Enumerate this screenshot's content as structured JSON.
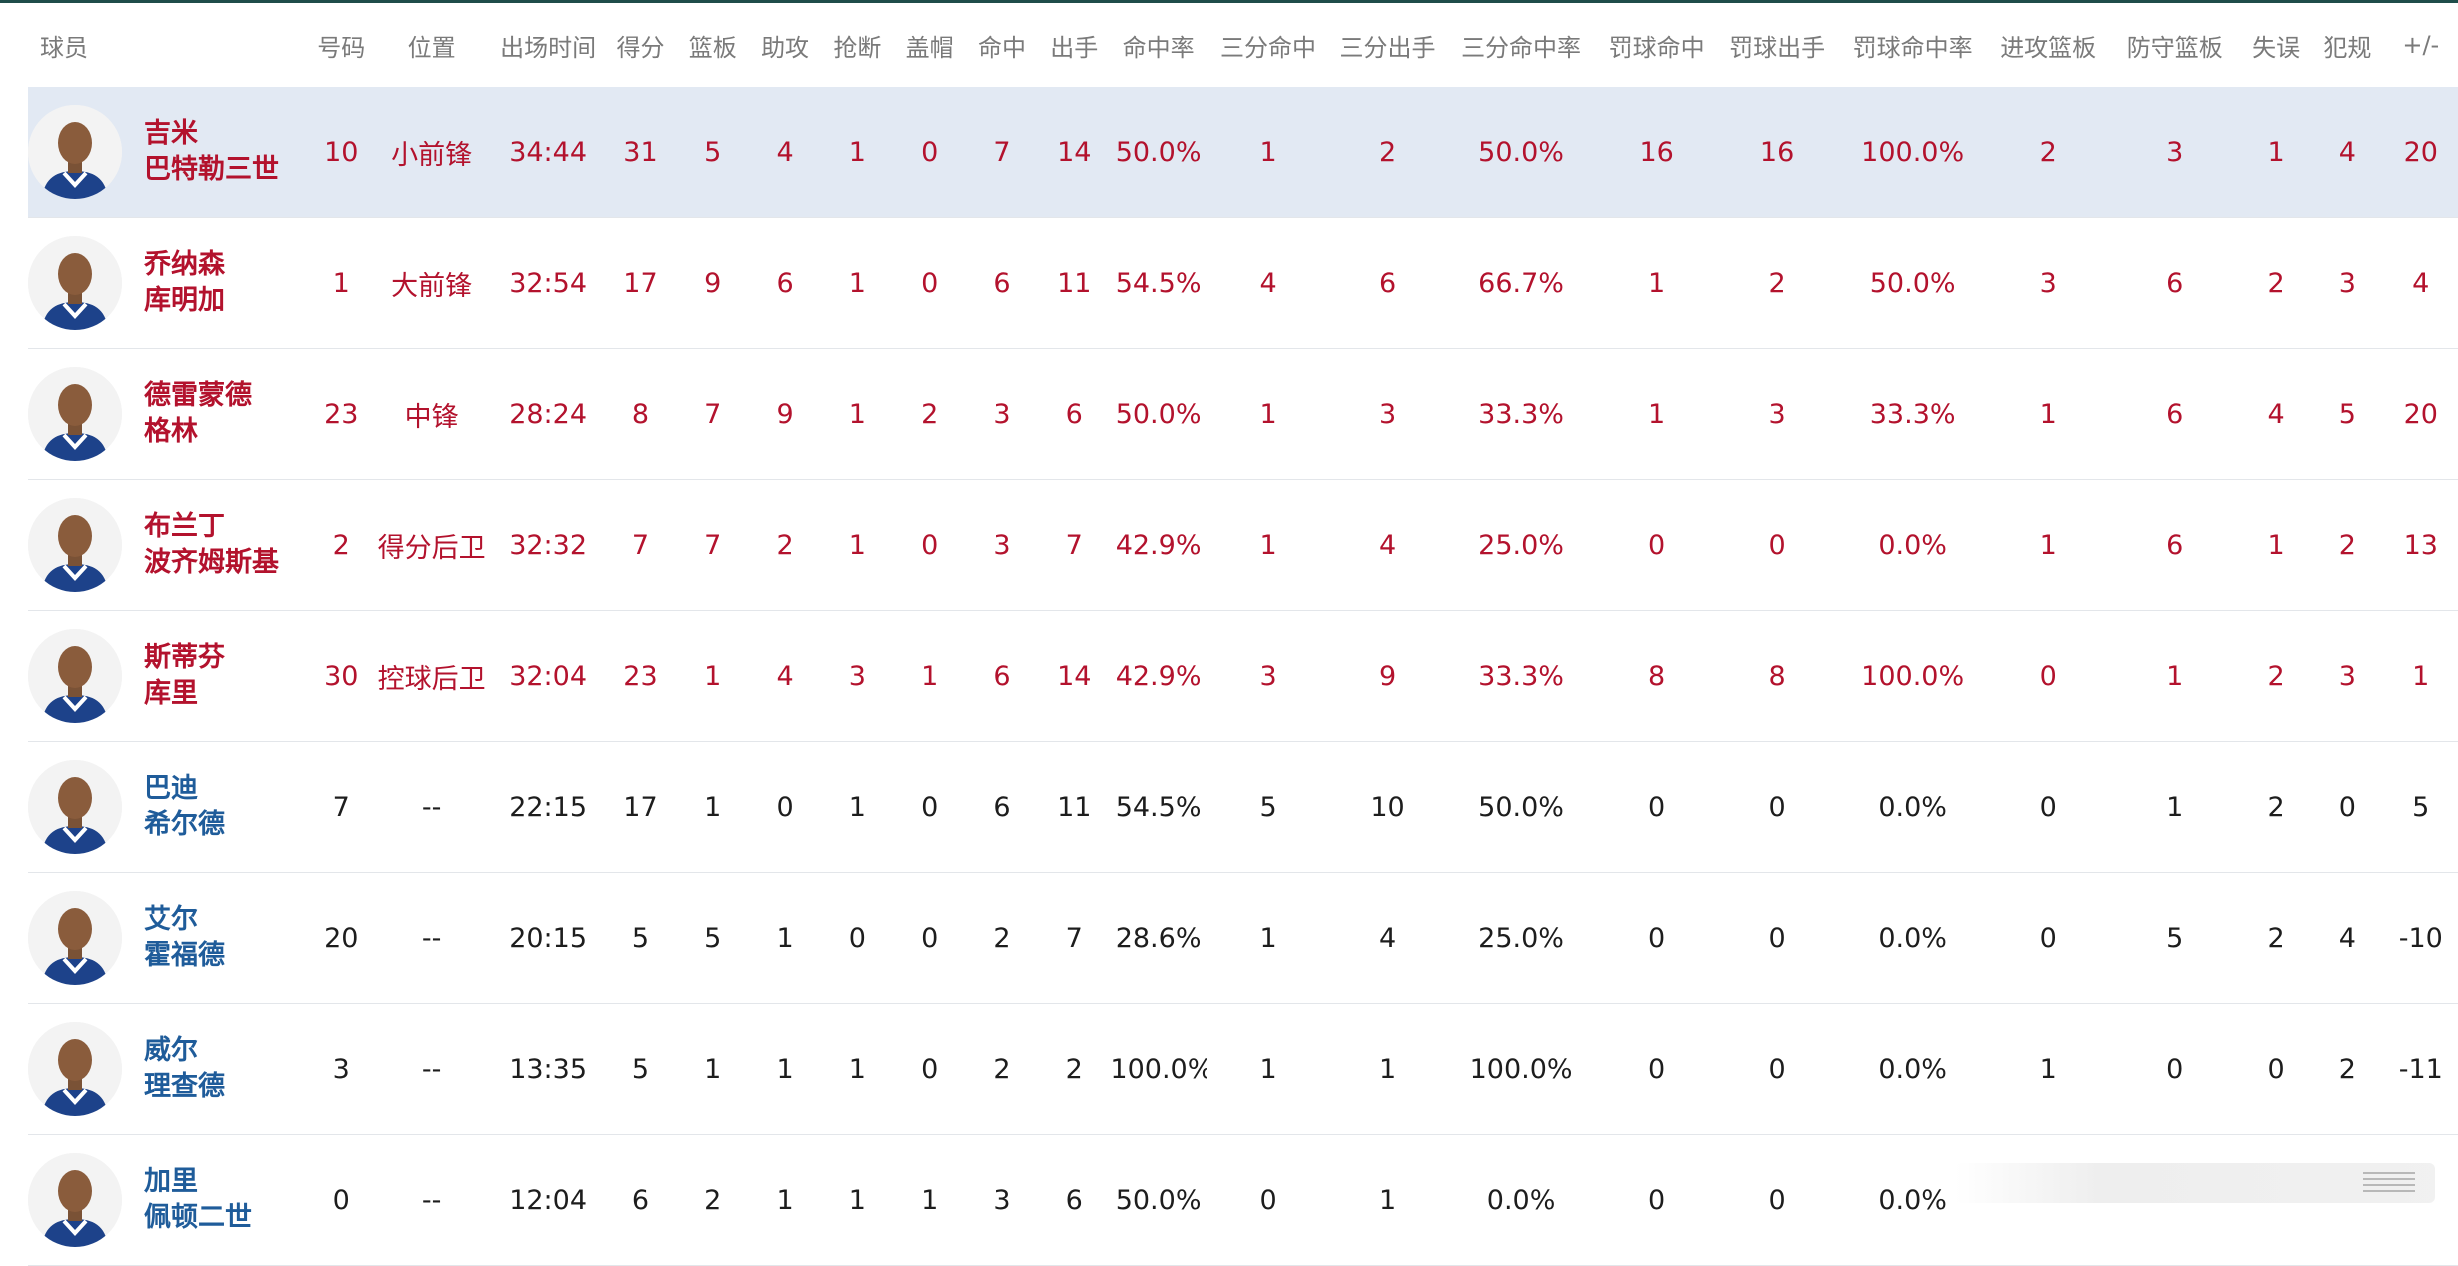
{
  "colors": {
    "starter_text": "#b3122d",
    "bench_name": "#1f5c9a",
    "bench_text": "#1d1d1d",
    "header_text": "#7a7a7a",
    "highlight_row": "#e2e9f3",
    "jersey_blue": "#1d428a"
  },
  "headers": [
    "球员",
    "号码",
    "位置",
    "出场时间",
    "得分",
    "篮板",
    "助攻",
    "抢断",
    "盖帽",
    "命中",
    "出手",
    "命中率",
    "三分命中",
    "三分出手",
    "三分命中率",
    "罚球命中",
    "罚球出手",
    "罚球命中率",
    "进攻篮板",
    "防守篮板",
    "失误",
    "犯规",
    "+/-"
  ],
  "rows": [
    {
      "name1": "吉米",
      "name2": "巴特勒三世",
      "avatar": "player-avatar-icon",
      "cells": [
        "10",
        "小前锋",
        "34:44",
        "31",
        "5",
        "4",
        "1",
        "0",
        "7",
        "14",
        "50.0%",
        "1",
        "2",
        "50.0%",
        "16",
        "16",
        "100.0%",
        "2",
        "3",
        "1",
        "4",
        "20"
      ]
    },
    {
      "name1": "乔纳森",
      "name2": "库明加",
      "avatar": "player-avatar-icon",
      "cells": [
        "1",
        "大前锋",
        "32:54",
        "17",
        "9",
        "6",
        "1",
        "0",
        "6",
        "11",
        "54.5%",
        "4",
        "6",
        "66.7%",
        "1",
        "2",
        "50.0%",
        "3",
        "6",
        "2",
        "3",
        "4"
      ]
    },
    {
      "name1": "德雷蒙德",
      "name2": "格林",
      "avatar": "player-avatar-icon",
      "cells": [
        "23",
        "中锋",
        "28:24",
        "8",
        "7",
        "9",
        "1",
        "2",
        "3",
        "6",
        "50.0%",
        "1",
        "3",
        "33.3%",
        "1",
        "3",
        "33.3%",
        "1",
        "6",
        "4",
        "5",
        "20"
      ]
    },
    {
      "name1": "布兰丁",
      "name2": "波齐姆斯基",
      "avatar": "player-avatar-icon",
      "cells": [
        "2",
        "得分后卫",
        "32:32",
        "7",
        "7",
        "2",
        "1",
        "0",
        "3",
        "7",
        "42.9%",
        "1",
        "4",
        "25.0%",
        "0",
        "0",
        "0.0%",
        "1",
        "6",
        "1",
        "2",
        "13"
      ]
    },
    {
      "name1": "斯蒂芬",
      "name2": "库里",
      "avatar": "player-avatar-icon",
      "cells": [
        "30",
        "控球后卫",
        "32:04",
        "23",
        "1",
        "4",
        "3",
        "1",
        "6",
        "14",
        "42.9%",
        "3",
        "9",
        "33.3%",
        "8",
        "8",
        "100.0%",
        "0",
        "1",
        "2",
        "3",
        "1"
      ]
    },
    {
      "name1": "巴迪",
      "name2": "希尔德",
      "avatar": "player-avatar-icon",
      "cells": [
        "7",
        "--",
        "22:15",
        "17",
        "1",
        "0",
        "1",
        "0",
        "6",
        "11",
        "54.5%",
        "5",
        "10",
        "50.0%",
        "0",
        "0",
        "0.0%",
        "0",
        "1",
        "2",
        "0",
        "5"
      ]
    },
    {
      "name1": "艾尔",
      "name2": "霍福德",
      "avatar": "player-avatar-icon",
      "cells": [
        "20",
        "--",
        "20:15",
        "5",
        "5",
        "1",
        "0",
        "0",
        "2",
        "7",
        "28.6%",
        "1",
        "4",
        "25.0%",
        "0",
        "0",
        "0.0%",
        "0",
        "5",
        "2",
        "4",
        "-10"
      ]
    },
    {
      "name1": "威尔",
      "name2": "理查德",
      "avatar": "player-avatar-icon",
      "cells": [
        "3",
        "--",
        "13:35",
        "5",
        "1",
        "1",
        "1",
        "0",
        "2",
        "2",
        "100.0%",
        "1",
        "1",
        "100.0%",
        "0",
        "0",
        "0.0%",
        "1",
        "0",
        "0",
        "2",
        "-11"
      ]
    },
    {
      "name1": "加里",
      "name2": "佩顿二世",
      "avatar": "player-avatar-icon",
      "cells": [
        "0",
        "--",
        "12:04",
        "6",
        "2",
        "1",
        "1",
        "1",
        "3",
        "6",
        "50.0%",
        "0",
        "1",
        "0.0%",
        "0",
        "0",
        "0.0%",
        "",
        "",
        "",
        "",
        ""
      ]
    }
  ]
}
